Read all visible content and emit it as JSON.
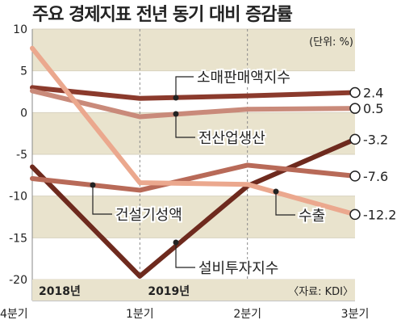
{
  "chart_data": {
    "type": "line",
    "title": "주요 경제지표 전년 동기 대비 증감률",
    "unit_note": "(단위: %)",
    "source": "〈자료: KDI〉",
    "period_labels": [
      "2018년",
      "2019년"
    ],
    "categories": [
      "4분기",
      "1분기",
      "2분기",
      "3분기"
    ],
    "ylim": [
      -20,
      10
    ],
    "y_ticks": [
      "10",
      "5",
      "0",
      "-5",
      "-10",
      "-15",
      "-20"
    ],
    "series": [
      {
        "name": "소매판매액지수",
        "values": [
          3.0,
          1.7,
          2.0,
          2.4
        ],
        "color": "#8B3A2C",
        "end_label": "2.4"
      },
      {
        "name": "전산업생산",
        "values": [
          2.6,
          -0.5,
          0.4,
          0.5
        ],
        "color": "#C98A7A",
        "end_label": "0.5"
      },
      {
        "name": "설비투자지수",
        "values": [
          -6.5,
          -19.6,
          -8.8,
          -3.2
        ],
        "color": "#6E2A1E",
        "end_label": "-3.2"
      },
      {
        "name": "건설기성액",
        "values": [
          -7.9,
          -9.3,
          -6.3,
          -7.6
        ],
        "color": "#B86A58",
        "end_label": "-7.6"
      },
      {
        "name": "수출",
        "values": [
          7.7,
          -8.4,
          -8.6,
          -12.2
        ],
        "color": "#EBA88E",
        "end_label": "-12.2"
      }
    ],
    "colors": {
      "band": "#E9E3CD",
      "axis": "#7a7a7a",
      "text": "#222222"
    }
  }
}
